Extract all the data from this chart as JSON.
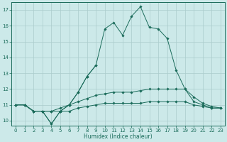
{
  "title": "",
  "xlabel": "Humidex (Indice chaleur)",
  "background_color": "#cce9e9",
  "grid_color": "#aacccc",
  "line_color": "#1a6b5a",
  "xlim": [
    -0.5,
    23.5
  ],
  "ylim": [
    9.7,
    17.5
  ],
  "yticks": [
    10,
    11,
    12,
    13,
    14,
    15,
    16,
    17
  ],
  "xticks": [
    0,
    1,
    2,
    3,
    4,
    5,
    6,
    7,
    8,
    9,
    10,
    11,
    12,
    13,
    14,
    15,
    16,
    17,
    18,
    19,
    20,
    21,
    22,
    23
  ],
  "series": [
    {
      "x": [
        0,
        1,
        2,
        3,
        4,
        5,
        6,
        7,
        8,
        9,
        10,
        11,
        12,
        13,
        14,
        15,
        16,
        17,
        18,
        19,
        20,
        21,
        22,
        23
      ],
      "y": [
        11.0,
        11.0,
        10.6,
        10.6,
        10.6,
        10.6,
        10.6,
        10.8,
        10.9,
        11.0,
        11.1,
        11.1,
        11.1,
        11.1,
        11.1,
        11.2,
        11.2,
        11.2,
        11.2,
        11.2,
        11.0,
        10.9,
        10.8,
        10.8
      ]
    },
    {
      "x": [
        0,
        1,
        2,
        3,
        4,
        5,
        6,
        7,
        8,
        9,
        10,
        11,
        12,
        13,
        14,
        15,
        16,
        17,
        18,
        19,
        20,
        21,
        22,
        23
      ],
      "y": [
        11.0,
        11.0,
        10.6,
        10.6,
        10.6,
        10.8,
        11.0,
        11.2,
        11.4,
        11.6,
        11.7,
        11.8,
        11.8,
        11.8,
        11.9,
        12.0,
        12.0,
        12.0,
        12.0,
        12.0,
        11.5,
        11.1,
        10.9,
        10.8
      ]
    },
    {
      "x": [
        0,
        1,
        2,
        3,
        4,
        5,
        6,
        7,
        8,
        9
      ],
      "y": [
        11.0,
        11.0,
        10.6,
        10.6,
        9.8,
        10.6,
        11.0,
        11.8,
        12.8,
        13.5
      ]
    },
    {
      "x": [
        0,
        1,
        2,
        3,
        4,
        5,
        6,
        7,
        8,
        9,
        10,
        11,
        12,
        13,
        14,
        15,
        16,
        17,
        18,
        19,
        20,
        21,
        22,
        23
      ],
      "y": [
        11.0,
        11.0,
        10.6,
        10.6,
        9.8,
        10.6,
        11.0,
        11.8,
        12.8,
        13.5,
        15.8,
        16.2,
        15.4,
        16.6,
        17.2,
        15.9,
        15.8,
        15.2,
        13.2,
        12.0,
        11.2,
        11.0,
        10.8,
        10.8
      ]
    }
  ]
}
